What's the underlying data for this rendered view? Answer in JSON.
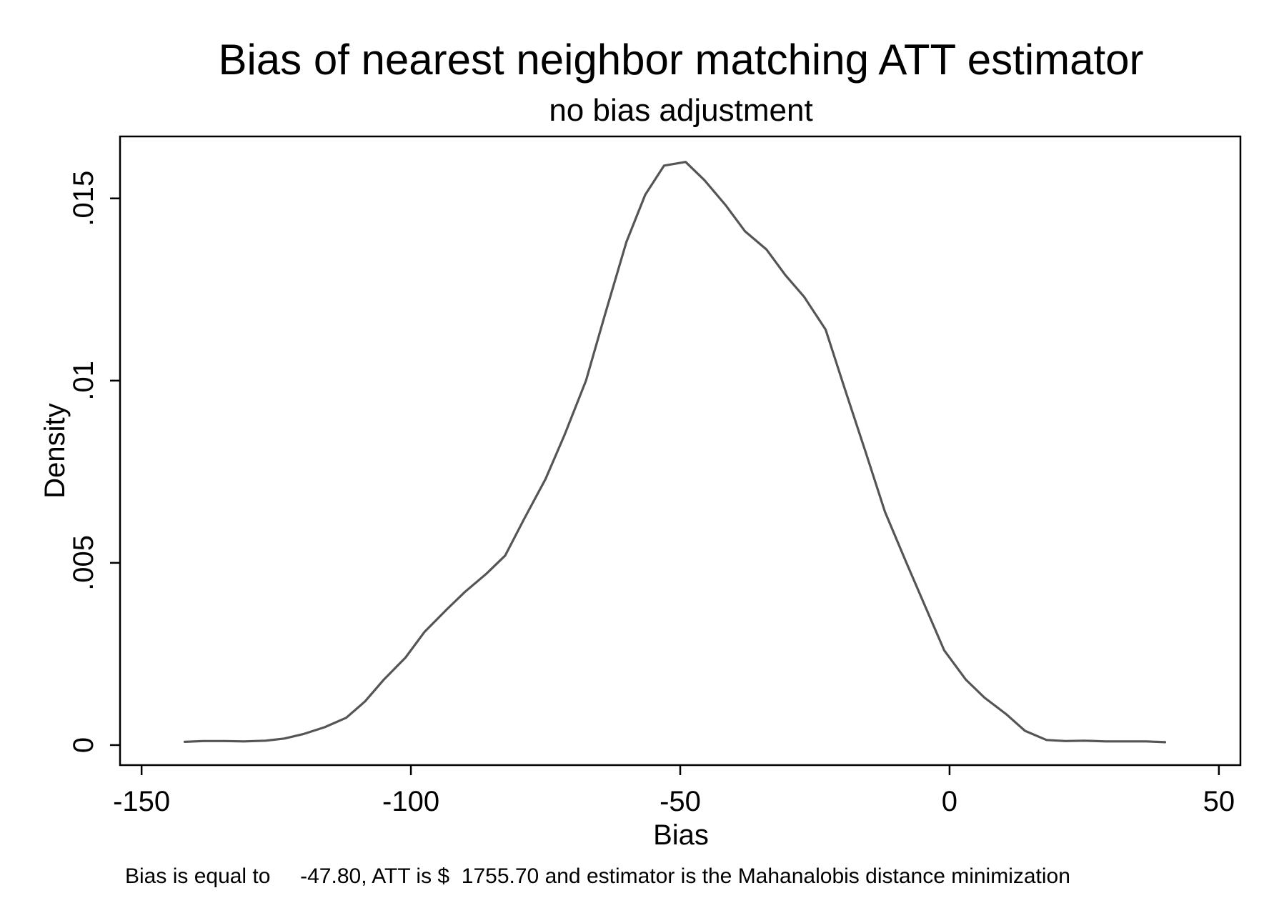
{
  "chart_data": {
    "type": "line",
    "title": "Bias of nearest neighbor matching ATT estimator",
    "subtitle": "no bias adjustment",
    "xlabel": "Bias",
    "ylabel": "Density",
    "note": "Bias is equal to     -47.80, ATT is $  1755.70 and estimator is the Mahanalobis distance minimization",
    "xlim": [
      -154,
      54
    ],
    "ylim": [
      -0.00055,
      0.0167
    ],
    "x_ticks": [
      -150,
      -100,
      -50,
      0,
      50
    ],
    "x_tick_labels": [
      "-150",
      "-100",
      "-50",
      "0",
      "50"
    ],
    "y_ticks": [
      0,
      0.005,
      0.01,
      0.015
    ],
    "y_tick_labels": [
      "0",
      ".005",
      ".01",
      ".015"
    ],
    "grid": false,
    "legend": "none",
    "line_color": "#555555",
    "series": [
      {
        "x": [
          -142,
          -138.5,
          -134.5,
          -131,
          -127,
          -123.5,
          -120,
          -116,
          -112,
          -108.5,
          -105,
          -101,
          -97.5,
          -93.5,
          -90,
          -86,
          -82.5,
          -79,
          -75,
          -71.5,
          -67.5,
          -64,
          -60,
          -56.5,
          -53,
          -49,
          -45.5,
          -41.5,
          -38,
          -34,
          -30.5,
          -27,
          -23,
          -19.5,
          -15.5,
          -12,
          -8,
          -4.5,
          -1,
          3,
          6.5,
          10.5,
          14,
          18,
          21.5,
          25,
          29,
          32.5,
          36.5,
          40
        ],
        "y": [
          9e-05,
          0.00011,
          0.00011,
          0.0001,
          0.00012,
          0.00018,
          0.0003,
          0.00049,
          0.00075,
          0.0012,
          0.0018,
          0.0024,
          0.0031,
          0.0037,
          0.0042,
          0.0047,
          0.0052,
          0.0062,
          0.0073,
          0.0085,
          0.01,
          0.0118,
          0.0138,
          0.0151,
          0.0159,
          0.016,
          0.0155,
          0.0148,
          0.0141,
          0.0136,
          0.0129,
          0.0123,
          0.0114,
          0.0098,
          0.008,
          0.0064,
          0.005,
          0.0038,
          0.0026,
          0.0018,
          0.0013,
          0.00085,
          0.00039,
          0.00014,
          0.00011,
          0.00012,
          0.0001,
          0.0001,
          0.0001,
          8e-05
        ]
      }
    ]
  }
}
